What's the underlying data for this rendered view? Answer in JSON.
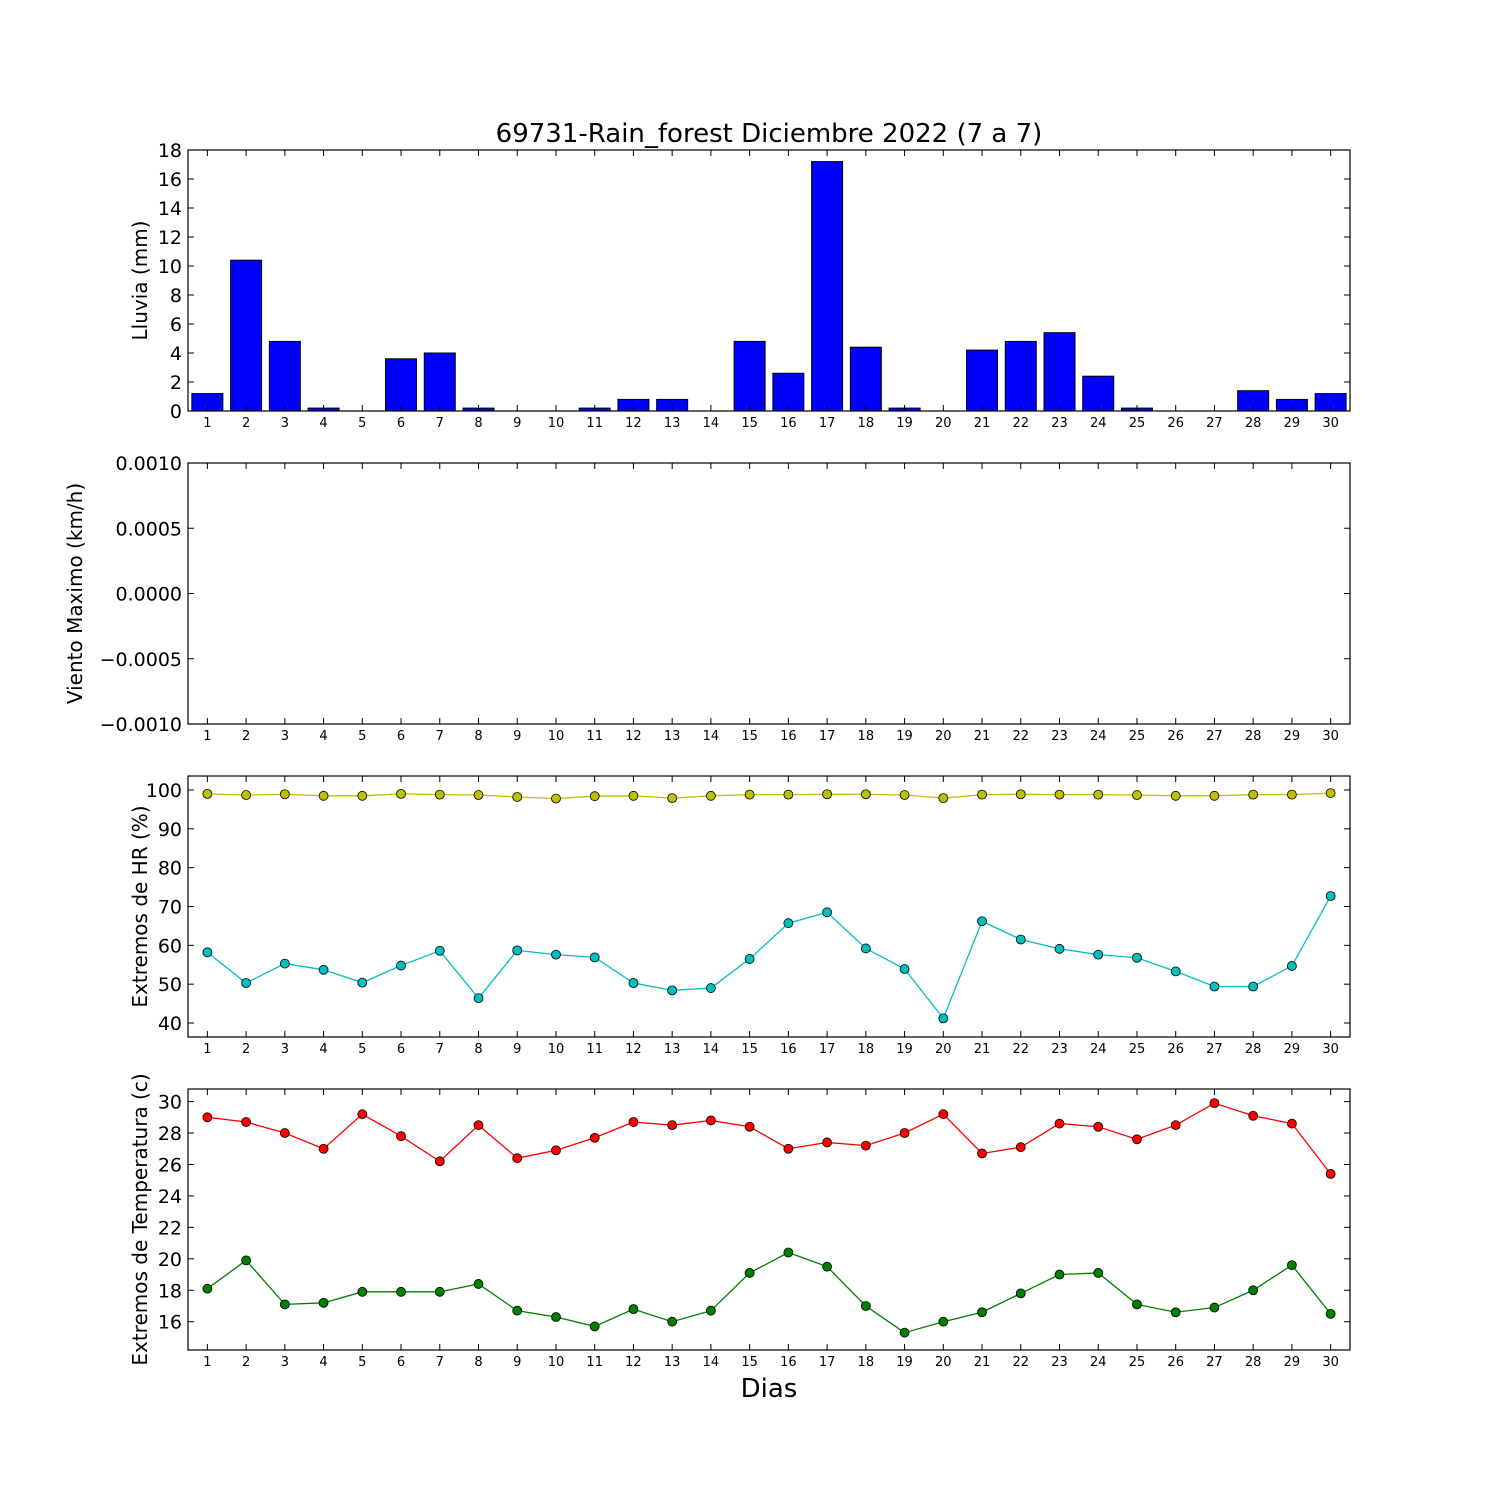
{
  "chart_data": [
    {
      "type": "bar",
      "title": "69731-Rain_forest Diciembre 2022  (7 a 7)",
      "xlabel": "",
      "ylabel": "Lluvia (mm)",
      "categories": [
        "1",
        "2",
        "3",
        "4",
        "5",
        "6",
        "7",
        "8",
        "9",
        "10",
        "11",
        "12",
        "13",
        "14",
        "15",
        "16",
        "17",
        "18",
        "19",
        "20",
        "21",
        "22",
        "23",
        "24",
        "25",
        "26",
        "27",
        "28",
        "29",
        "30"
      ],
      "series": [
        {
          "color": "#0000ff",
          "values": [
            1.2,
            10.4,
            4.8,
            0.2,
            0,
            3.6,
            4.0,
            0.2,
            0,
            0,
            0.2,
            0.8,
            0.8,
            0,
            4.8,
            2.6,
            17.2,
            4.4,
            0.2,
            0,
            4.2,
            4.8,
            5.4,
            2.4,
            0.2,
            0,
            0,
            1.4,
            0.8,
            1.2
          ]
        }
      ],
      "ylim": [
        0,
        18
      ],
      "yticks": [
        "0",
        "2",
        "4",
        "6",
        "8",
        "10",
        "12",
        "14",
        "16",
        "18"
      ]
    },
    {
      "type": "line",
      "title": "",
      "xlabel": "",
      "ylabel": "Viento Maximo (km/h)",
      "categories": [
        "1",
        "2",
        "3",
        "4",
        "5",
        "6",
        "7",
        "8",
        "9",
        "10",
        "11",
        "12",
        "13",
        "14",
        "15",
        "16",
        "17",
        "18",
        "19",
        "20",
        "21",
        "22",
        "23",
        "24",
        "25",
        "26",
        "27",
        "28",
        "29",
        "30"
      ],
      "series": [],
      "ylim": [
        -0.001,
        0.001
      ],
      "yticks": [
        "−0.0010",
        "−0.0005",
        "0.0000",
        "0.0005",
        "0.0010"
      ]
    },
    {
      "type": "line",
      "title": "",
      "xlabel": "",
      "ylabel": "Extremos de HR (%)",
      "categories": [
        "1",
        "2",
        "3",
        "4",
        "5",
        "6",
        "7",
        "8",
        "9",
        "10",
        "11",
        "12",
        "13",
        "14",
        "15",
        "16",
        "17",
        "18",
        "19",
        "20",
        "21",
        "22",
        "23",
        "24",
        "25",
        "26",
        "27",
        "28",
        "29",
        "30"
      ],
      "series": [
        {
          "color": "#bfbf00",
          "values": [
            99,
            98.7,
            98.9,
            98.5,
            98.5,
            99,
            98.8,
            98.7,
            98.2,
            97.8,
            98.4,
            98.5,
            97.9,
            98.5,
            98.8,
            98.8,
            98.9,
            98.9,
            98.7,
            97.9,
            98.8,
            98.9,
            98.8,
            98.8,
            98.7,
            98.5,
            98.5,
            98.8,
            98.8,
            99.2
          ]
        },
        {
          "color": "#00bfbf",
          "values": [
            58.2,
            50.3,
            55.3,
            53.7,
            50.4,
            54.8,
            58.6,
            46.4,
            58.7,
            57.6,
            56.9,
            50.3,
            48.4,
            49,
            56.5,
            65.7,
            68.5,
            59.2,
            53.9,
            41.2,
            66.2,
            61.5,
            59.1,
            57.6,
            56.8,
            53.3,
            49.4,
            49.4,
            54.7,
            72.7
          ]
        }
      ],
      "ylim": [
        36.4,
        103.6
      ],
      "yticks": [
        "40",
        "50",
        "60",
        "70",
        "80",
        "90",
        "100"
      ]
    },
    {
      "type": "line",
      "title": "",
      "xlabel": "Dias",
      "ylabel": "Extremos de Temperatura (c)",
      "categories": [
        "1",
        "2",
        "3",
        "4",
        "5",
        "6",
        "7",
        "8",
        "9",
        "10",
        "11",
        "12",
        "13",
        "14",
        "15",
        "16",
        "17",
        "18",
        "19",
        "20",
        "21",
        "22",
        "23",
        "24",
        "25",
        "26",
        "27",
        "28",
        "29",
        "30"
      ],
      "series": [
        {
          "color": "#ff0000",
          "values": [
            29,
            28.7,
            28,
            27,
            29.2,
            27.8,
            26.2,
            28.5,
            26.4,
            26.9,
            27.7,
            28.7,
            28.5,
            28.8,
            28.4,
            27,
            27.4,
            27.2,
            28,
            29.2,
            26.7,
            27.1,
            28.6,
            28.4,
            27.6,
            28.5,
            29.9,
            29.1,
            28.6,
            25.4
          ]
        },
        {
          "color": "#007f00",
          "values": [
            18.1,
            19.9,
            17.1,
            17.2,
            17.9,
            17.9,
            17.9,
            18.4,
            16.7,
            16.3,
            15.7,
            16.8,
            16,
            16.7,
            19.1,
            20.4,
            19.5,
            17,
            15.3,
            16,
            16.6,
            17.8,
            19,
            19.1,
            17.1,
            16.6,
            16.9,
            18,
            19.6,
            16.5
          ]
        }
      ],
      "ylim": [
        14.2,
        30.8
      ],
      "yticks": [
        "16",
        "18",
        "20",
        "22",
        "24",
        "26",
        "28",
        "30"
      ]
    }
  ]
}
